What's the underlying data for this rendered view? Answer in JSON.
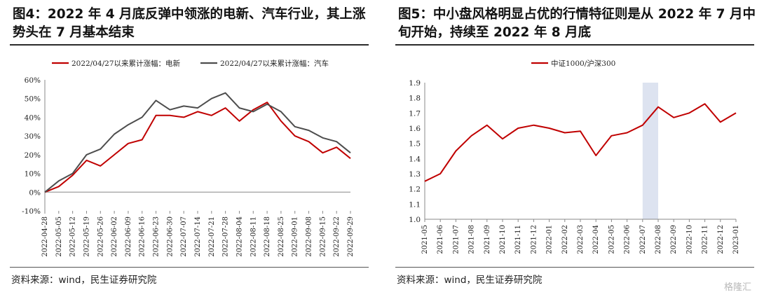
{
  "left": {
    "title": "图4：2022 年 4 月底反弹中领涨的电新、汽车行业，其上涨势头在 7 月基本结束",
    "source": "资料来源：wind，民生证券研究院"
  },
  "right": {
    "title": "图5：中小盘风格明显占优的行情特征则是从  2022  年 7 月中旬开始，持续至 2022 年 8 月底",
    "source": "资料来源：wind，民生证券研究院"
  },
  "watermark": "格隆汇",
  "colors": {
    "red": "#c00000",
    "gray": "#4d4d4d",
    "shade": "#dde3f0"
  },
  "chart_data": [
    {
      "type": "line",
      "title": "",
      "ylim": [
        -0.1,
        0.6
      ],
      "yticks": [
        "-10%",
        "0%",
        "10%",
        "20%",
        "30%",
        "40%",
        "50%",
        "60%"
      ],
      "x": [
        "2022-04-28",
        "2022-05-05",
        "2022-05-12",
        "2022-05-19",
        "2022-05-26",
        "2022-06-02",
        "2022-06-09",
        "2022-06-16",
        "2022-06-23",
        "2022-06-30",
        "2022-07-07",
        "2022-07-14",
        "2022-07-21",
        "2022-07-28",
        "2022-08-04",
        "2022-08-11",
        "2022-08-18",
        "2022-08-25",
        "2022-09-01",
        "2022-09-08",
        "2022-09-15",
        "2022-09-22",
        "2022-09-29"
      ],
      "legend_position": "top",
      "series": [
        {
          "name": "2022/04/27以来累计涨幅：电新",
          "color": "#c00000",
          "values": [
            0.0,
            0.03,
            0.09,
            0.17,
            0.14,
            0.2,
            0.26,
            0.28,
            0.41,
            0.41,
            0.4,
            0.43,
            0.41,
            0.45,
            0.38,
            0.44,
            0.48,
            0.38,
            0.3,
            0.27,
            0.21,
            0.24,
            0.18
          ]
        },
        {
          "name": "2022/04/27以来累计涨幅：汽车",
          "color": "#4d4d4d",
          "values": [
            0.0,
            0.06,
            0.1,
            0.2,
            0.23,
            0.31,
            0.36,
            0.4,
            0.49,
            0.44,
            0.46,
            0.45,
            0.5,
            0.53,
            0.45,
            0.43,
            0.47,
            0.43,
            0.35,
            0.33,
            0.29,
            0.27,
            0.21
          ]
        }
      ]
    },
    {
      "type": "line",
      "title": "",
      "ylim": [
        1.0,
        1.9
      ],
      "yticks": [
        "1.0",
        "1.1",
        "1.2",
        "1.3",
        "1.4",
        "1.5",
        "1.6",
        "1.7",
        "1.8",
        "1.9"
      ],
      "x": [
        "2021-05",
        "2021-06",
        "2021-07",
        "2021-08",
        "2021-09",
        "2021-10",
        "2021-11",
        "2021-12",
        "2022-01",
        "2022-02",
        "2022-03",
        "2022-04",
        "2022-05",
        "2022-06",
        "2022-07",
        "2022-08",
        "2022-09",
        "2022-10",
        "2022-11",
        "2022-12",
        "2023-01"
      ],
      "legend_position": "top",
      "shaded_range": [
        "2022-07",
        "2022-08"
      ],
      "series": [
        {
          "name": "中证1000/沪深300",
          "color": "#c00000",
          "values": [
            1.25,
            1.3,
            1.45,
            1.55,
            1.62,
            1.53,
            1.6,
            1.62,
            1.6,
            1.57,
            1.58,
            1.42,
            1.55,
            1.57,
            1.62,
            1.74,
            1.67,
            1.7,
            1.76,
            1.64,
            1.7
          ]
        }
      ]
    }
  ]
}
